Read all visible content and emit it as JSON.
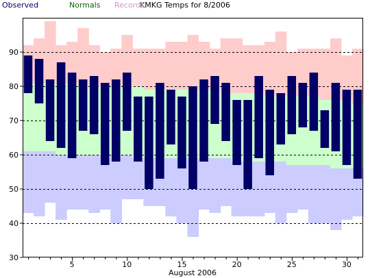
{
  "chart_data": {
    "type": "bar",
    "title": "KMKG Temps for 8/2006",
    "xlabel": "August 2006",
    "ylabel": "",
    "ylim": [
      30,
      100
    ],
    "xlim": [
      0.5,
      31.5
    ],
    "yticks": [
      30,
      40,
      50,
      60,
      70,
      80,
      90
    ],
    "xticks": [
      5,
      10,
      15,
      20,
      25,
      30
    ],
    "grid": "horizontal-dashed",
    "legend": "top-left",
    "days": [
      1,
      2,
      3,
      4,
      5,
      6,
      7,
      8,
      9,
      10,
      11,
      12,
      13,
      14,
      15,
      16,
      17,
      18,
      19,
      20,
      21,
      22,
      23,
      24,
      25,
      26,
      27,
      28,
      29,
      30,
      31
    ],
    "series": [
      {
        "name": "Observed",
        "color": "#000066",
        "low": [
          78,
          75,
          64,
          62,
          59,
          67,
          66,
          57,
          58,
          67,
          58,
          50,
          53,
          63,
          56,
          50,
          58,
          69,
          64,
          57,
          50,
          59,
          54,
          63,
          66,
          68,
          67,
          62,
          61,
          57,
          53
        ],
        "high": [
          89,
          88,
          82,
          87,
          84,
          82,
          83,
          81,
          82,
          84,
          77,
          77,
          81,
          79,
          77,
          80,
          82,
          83,
          81,
          76,
          76,
          83,
          79,
          78,
          83,
          81,
          84,
          73,
          81,
          79,
          79
        ]
      },
      {
        "name": "Normals",
        "color": "#006600",
        "fill": "#ccffcc",
        "low": [
          61,
          61,
          61,
          60,
          60,
          60,
          60,
          60,
          60,
          60,
          59,
          59,
          59,
          59,
          59,
          59,
          59,
          59,
          59,
          58,
          58,
          58,
          58,
          58,
          57,
          57,
          57,
          57,
          56,
          56,
          56
        ],
        "high": [
          81,
          81,
          81,
          81,
          81,
          80,
          80,
          80,
          80,
          80,
          80,
          79,
          79,
          79,
          79,
          79,
          79,
          79,
          78,
          78,
          78,
          78,
          77,
          77,
          77,
          77,
          77,
          76,
          76,
          76,
          75
        ]
      },
      {
        "name": "Records",
        "color": "#cc99cc",
        "high_fill": "#ffcccc",
        "low_fill": "#ccccff",
        "low": [
          43,
          42,
          46,
          41,
          44,
          44,
          43,
          44,
          40,
          47,
          47,
          45,
          45,
          42,
          40,
          36,
          44,
          43,
          45,
          42,
          42,
          42,
          43,
          40,
          43,
          44,
          40,
          40,
          38,
          41,
          42
        ],
        "high": [
          92,
          94,
          99,
          92,
          93,
          97,
          92,
          90,
          91,
          95,
          91,
          91,
          91,
          93,
          93,
          95,
          93,
          91,
          94,
          94,
          92,
          92,
          93,
          96,
          90,
          91,
          91,
          91,
          94,
          89,
          91
        ]
      }
    ]
  }
}
